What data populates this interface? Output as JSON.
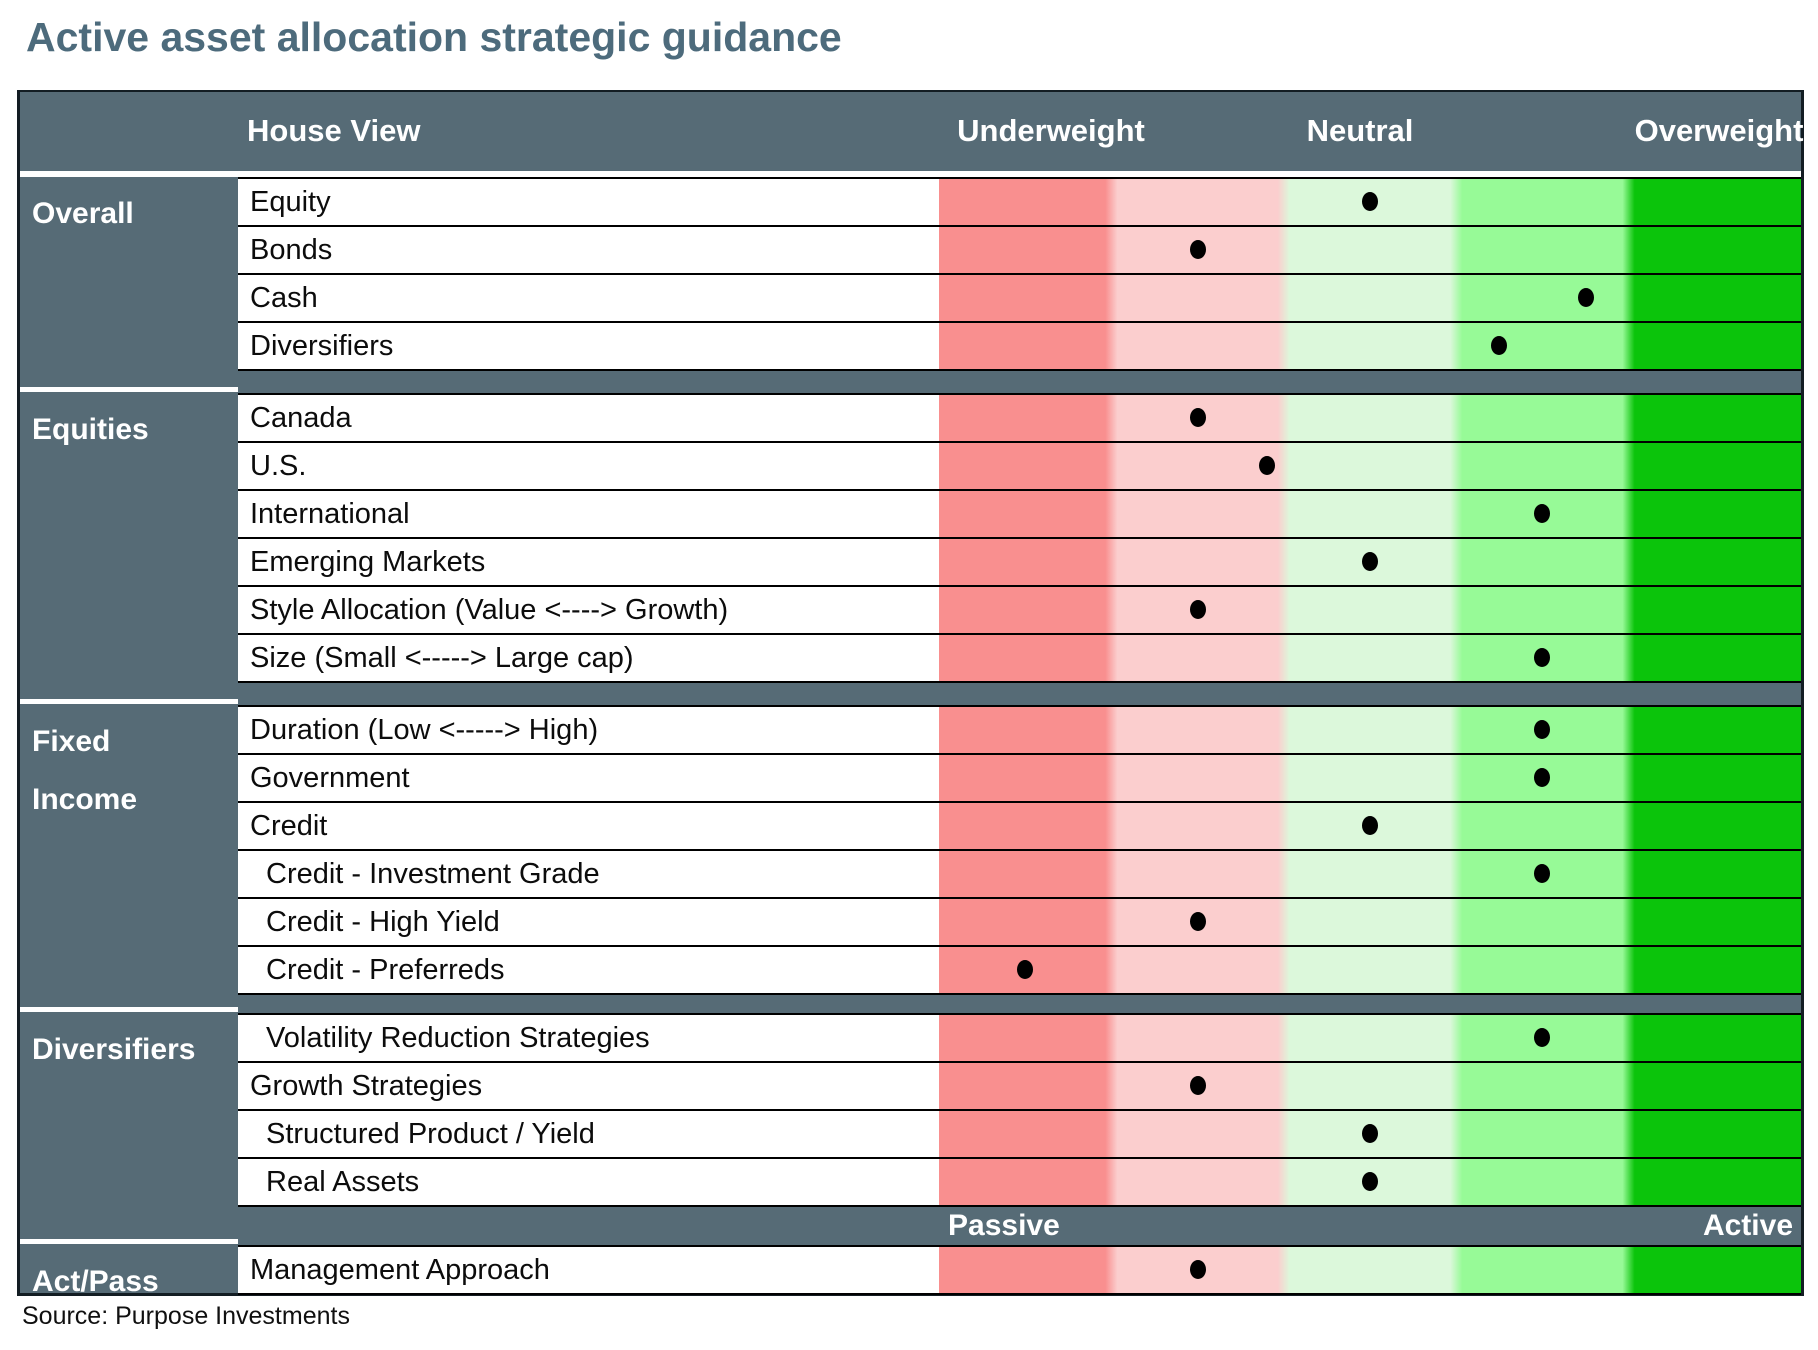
{
  "title": "Active asset allocation strategic guidance",
  "table_header": {
    "house_view": "House View",
    "underweight": "Underweight",
    "neutral": "Neutral",
    "overweight": "Overweight"
  },
  "scale_footer": {
    "passive": "Passive",
    "active": "Active"
  },
  "source": "Source: Purpose Investments",
  "colors": {
    "slate_background": "#566b76",
    "title_text": "#4d6b7c",
    "band_strong_underweight": "#f98f8f",
    "band_underweight": "#fbcece",
    "band_neutral": "#dcf8db",
    "band_overweight": "#97fa97",
    "band_strong_overweight": "#0bc40b",
    "dot": "#000000"
  },
  "chart_data": {
    "type": "table",
    "title": "Active asset allocation strategic guidance",
    "columns": [
      "Underweight",
      "Neutral",
      "Overweight"
    ],
    "stance_scale": {
      "min": -2.5,
      "max": 2.5,
      "note": "Dot position across the 5 color bands: -2 strong underweight, -1 underweight, 0 neutral, +1 overweight, +2 strong overweight"
    },
    "sections": [
      {
        "label": "Overall",
        "rows": [
          {
            "label": "Equity",
            "stance": 0
          },
          {
            "label": "Bonds",
            "stance": -1
          },
          {
            "label": "Cash",
            "stance": 1.25
          },
          {
            "label": "Diversifiers",
            "stance": 0.75
          }
        ]
      },
      {
        "label": "Equities",
        "rows": [
          {
            "label": "Canada",
            "stance": -1
          },
          {
            "label": "U.S.",
            "stance": -0.6
          },
          {
            "label": "International",
            "stance": 1
          },
          {
            "label": "Emerging Markets",
            "stance": 0
          },
          {
            "label": "Style Allocation (Value <----> Growth)",
            "stance": -1
          },
          {
            "label": "Size (Small <----->  Large cap)",
            "stance": 1
          }
        ]
      },
      {
        "label": "Fixed Income",
        "label_lines": [
          "Fixed",
          "Income"
        ],
        "rows": [
          {
            "label": "Duration (Low <-----> High)",
            "stance": 1
          },
          {
            "label": "Government",
            "stance": 1
          },
          {
            "label": "Credit",
            "stance": 0
          },
          {
            "label": "Credit - Investment Grade",
            "stance": 1,
            "indent": true
          },
          {
            "label": "Credit - High Yield",
            "stance": -1,
            "indent": true
          },
          {
            "label": "Credit - Preferreds",
            "stance": -2,
            "indent": true
          }
        ]
      },
      {
        "label": "Diversifiers",
        "rows": [
          {
            "label": "Volatility Reduction Strategies",
            "stance": 1,
            "indent": true
          },
          {
            "label": "Growth Strategies",
            "stance": -1
          },
          {
            "label": "Structured Product / Yield",
            "stance": 0,
            "indent": true
          },
          {
            "label": "Real Assets",
            "stance": 0,
            "indent": true
          }
        ]
      },
      {
        "label": "Act/Pass",
        "rows": [
          {
            "label": "Management Approach",
            "stance": -1
          }
        ]
      }
    ]
  }
}
